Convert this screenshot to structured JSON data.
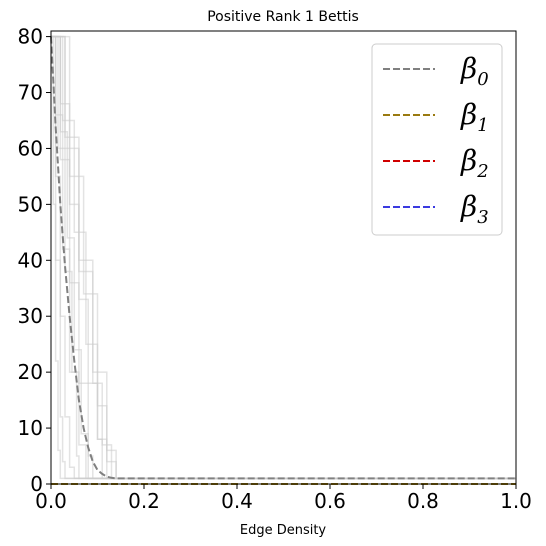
{
  "chart_data": {
    "type": "line",
    "title": "Positive Rank 1 Bettis",
    "xlabel": "Edge Density",
    "ylabel": "",
    "xlim": [
      0,
      1
    ],
    "ylim": [
      0,
      81
    ],
    "xticks": [
      "0.0",
      "0.2",
      "0.4",
      "0.6",
      "0.8",
      "1.0"
    ],
    "yticks": [
      "0",
      "10",
      "20",
      "30",
      "40",
      "50",
      "60",
      "70",
      "80"
    ],
    "grid": false,
    "legend_position": "top-right",
    "series": [
      {
        "name": "β0",
        "symbol": "β",
        "sub": "0",
        "color": "#808080",
        "style": "dashed",
        "x": [
          0,
          0.005,
          0.01,
          0.015,
          0.02,
          0.03,
          0.04,
          0.05,
          0.06,
          0.07,
          0.08,
          0.09,
          0.1,
          0.11,
          0.12,
          0.13,
          0.14,
          1.0
        ],
        "y": [
          80,
          72,
          64,
          57,
          50,
          39,
          30,
          22,
          15,
          10,
          6.5,
          4,
          2.5,
          1.8,
          1.3,
          1.1,
          1,
          1
        ]
      },
      {
        "name": "β1",
        "symbol": "β",
        "sub": "1",
        "color": "#9a7a10",
        "style": "dashed",
        "x": [
          0,
          1
        ],
        "y": [
          0,
          0
        ]
      },
      {
        "name": "β2",
        "symbol": "β",
        "sub": "2",
        "color": "#d00000",
        "style": "dashed",
        "x": [
          0,
          1
        ],
        "y": [
          0,
          0
        ]
      },
      {
        "name": "β3",
        "symbol": "β",
        "sub": "3",
        "color": "#3a3ae0",
        "style": "dashed",
        "x": [
          0,
          1
        ],
        "y": [
          0,
          0
        ]
      }
    ],
    "background_traces": {
      "color": "#cccccc",
      "traces": [
        {
          "x": [
            0,
            0.02,
            0.04,
            0.06,
            0.08,
            0.1,
            0.12,
            1.0
          ],
          "y": [
            80,
            68,
            50,
            33,
            18,
            8,
            1,
            1
          ]
        },
        {
          "x": [
            0,
            0.01,
            0.02,
            0.03,
            0.04,
            0.05,
            1.0
          ],
          "y": [
            80,
            55,
            30,
            12,
            3,
            1,
            1
          ]
        },
        {
          "x": [
            0,
            0.03,
            0.06,
            0.09,
            0.12,
            0.14,
            1.0
          ],
          "y": [
            80,
            62,
            40,
            20,
            6,
            1,
            1
          ]
        },
        {
          "x": [
            0,
            0.015,
            0.03,
            0.045,
            0.06,
            0.075,
            1.0
          ],
          "y": [
            80,
            60,
            38,
            20,
            7,
            1,
            1
          ]
        },
        {
          "x": [
            0,
            0.01,
            0.02,
            0.025,
            0.03,
            1.0
          ],
          "y": [
            80,
            40,
            12,
            4,
            1,
            1
          ]
        },
        {
          "x": [
            0,
            0.025,
            0.05,
            0.075,
            0.1,
            0.11,
            1.0
          ],
          "y": [
            80,
            65,
            45,
            25,
            8,
            1,
            1
          ]
        },
        {
          "x": [
            0,
            0.02,
            0.04,
            0.06,
            0.08,
            0.09,
            1.0
          ],
          "y": [
            80,
            58,
            36,
            18,
            5,
            1,
            1
          ]
        },
        {
          "x": [
            0,
            0.03,
            0.06,
            0.09,
            0.11,
            0.13,
            1.0
          ],
          "y": [
            80,
            60,
            38,
            18,
            7,
            1,
            1
          ]
        },
        {
          "x": [
            0,
            0.005,
            0.01,
            0.015,
            0.02,
            1.0
          ],
          "y": [
            80,
            50,
            22,
            6,
            1,
            1
          ]
        },
        {
          "x": [
            0,
            0.04,
            0.07,
            0.1,
            0.12,
            0.14,
            1.0
          ],
          "y": [
            80,
            55,
            34,
            14,
            4,
            1,
            1
          ]
        },
        {
          "x": [
            0,
            0.02,
            0.035,
            0.05,
            0.065,
            0.08,
            1.0
          ],
          "y": [
            80,
            63,
            44,
            24,
            9,
            1,
            1
          ]
        },
        {
          "x": [
            0,
            0.01,
            0.025,
            0.04,
            0.055,
            0.06,
            1.0
          ],
          "y": [
            80,
            66,
            42,
            20,
            5,
            1,
            1
          ]
        }
      ]
    }
  }
}
